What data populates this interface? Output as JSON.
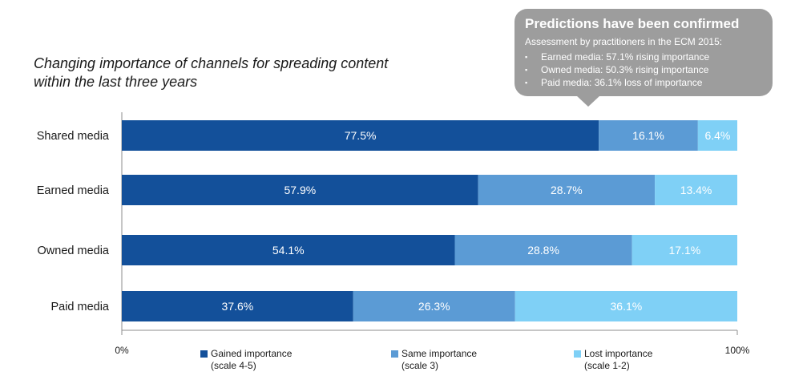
{
  "chart_data": {
    "type": "bar",
    "orientation": "horizontal",
    "stacked": true,
    "title": "Changing importance of channels for spreading content within the last three years",
    "title_lines": [
      "Changing importance of channels for spreading content",
      "within the last three years"
    ],
    "categories": [
      "Shared media",
      "Earned media",
      "Owned media",
      "Paid media"
    ],
    "series": [
      {
        "name": "Gained importance",
        "detail": "(scale 4-5)",
        "color": "#13509a",
        "values": [
          77.5,
          57.9,
          54.1,
          37.6
        ],
        "labels": [
          "77.5%",
          "57.9%",
          "54.1%",
          "37.6%"
        ]
      },
      {
        "name": "Same importance",
        "detail": "(scale 3)",
        "color": "#5b9bd5",
        "values": [
          16.1,
          28.7,
          28.8,
          26.3
        ],
        "labels": [
          "16.1%",
          "28.7%",
          "28.8%",
          "26.3%"
        ]
      },
      {
        "name": "Lost importance",
        "detail": "(scale 1-2)",
        "color": "#7fd0f6",
        "values": [
          6.4,
          13.4,
          17.1,
          36.1
        ],
        "labels": [
          "6.4%",
          "13.4%",
          "17.1%",
          "36.1%"
        ]
      }
    ],
    "xlim": [
      0,
      100
    ],
    "x_tick_labels": [
      "0%",
      "100%"
    ],
    "grid": false,
    "legend_position": "bottom"
  },
  "callout": {
    "heading": "Predictions have been confirmed",
    "subheading": "Assessment by practitioners in the ECM 2015:",
    "bullet_glyph": "▪",
    "items": [
      "Earned media: 57.1% rising importance",
      "Owned media: 50.3% rising importance",
      "Paid media: 36.1% loss of importance"
    ],
    "color": "#9d9d9d"
  }
}
